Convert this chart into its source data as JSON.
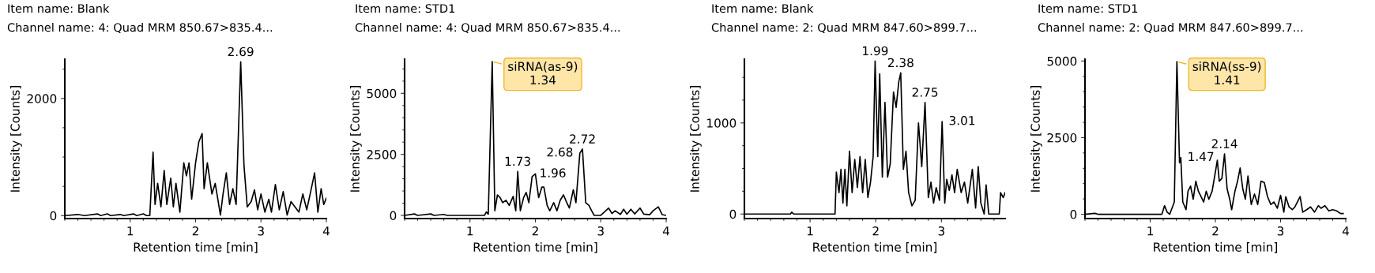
{
  "chart_data": [
    {
      "type": "line",
      "title": "Item name: Blank",
      "subtitle": "Channel name: 4: Quad MRM 850.67>835.4...",
      "xlabel": "Retention time [min]",
      "ylabel": "Intensity [Counts]",
      "xlim": [
        0,
        4
      ],
      "xticks": [
        1,
        2,
        3,
        4
      ],
      "ylim": [
        -50,
        2670
      ],
      "yticks": [
        0,
        2000
      ],
      "series": [
        {
          "color": "#000000",
          "x": [
            0,
            0.2,
            0.3,
            0.5,
            0.55,
            0.65,
            0.7,
            0.85,
            0.9,
            1.05,
            1.1,
            1.2,
            1.25,
            1.3,
            1.35,
            1.38,
            1.42,
            1.47,
            1.52,
            1.56,
            1.62,
            1.66,
            1.7,
            1.76,
            1.82,
            1.86,
            1.9,
            1.94,
            2.0,
            2.05,
            2.1,
            2.13,
            2.18,
            2.25,
            2.3,
            2.38,
            2.42,
            2.47,
            2.52,
            2.57,
            2.62,
            2.69,
            2.74,
            2.79,
            2.85,
            2.9,
            2.95,
            3.0,
            3.06,
            3.12,
            3.16,
            3.22,
            3.28,
            3.34,
            3.4,
            3.46,
            3.52,
            3.58,
            3.64,
            3.7,
            3.76,
            3.82,
            3.87,
            3.92,
            3.96,
            4.0
          ],
          "values": [
            0,
            20,
            0,
            30,
            0,
            30,
            0,
            20,
            0,
            30,
            0,
            30,
            0,
            0,
            1085,
            190,
            550,
            150,
            770,
            190,
            640,
            150,
            550,
            60,
            900,
            680,
            900,
            280,
            900,
            1260,
            1400,
            460,
            900,
            370,
            550,
            10,
            370,
            730,
            190,
            460,
            190,
            2625,
            860,
            150,
            240,
            440,
            100,
            370,
            60,
            280,
            60,
            530,
            100,
            410,
            10,
            240,
            150,
            60,
            370,
            100,
            410,
            730,
            60,
            460,
            190,
            300
          ]
        }
      ],
      "annotations": [
        {
          "text": "2.69",
          "x": 2.69,
          "y": 2625
        }
      ]
    },
    {
      "type": "line",
      "title": "Item name: STD1",
      "subtitle": "Channel name: 4: Quad MRM 850.67>835.4...",
      "xlabel": "Retention time [min]",
      "ylabel": "Intensity [Counts]",
      "xlim": [
        0,
        4
      ],
      "xticks": [
        1,
        2,
        3,
        4
      ],
      "ylim": [
        -130,
        6400
      ],
      "yticks": [
        0,
        2500,
        5000
      ],
      "series": [
        {
          "color": "#000000",
          "x": [
            0,
            0.15,
            0.2,
            0.4,
            0.45,
            0.6,
            0.65,
            1.2,
            1.22,
            1.25,
            1.28,
            1.34,
            1.38,
            1.42,
            1.46,
            1.5,
            1.55,
            1.6,
            1.66,
            1.7,
            1.73,
            1.77,
            1.82,
            1.86,
            1.9,
            1.95,
            2.0,
            2.05,
            2.1,
            2.13,
            2.18,
            2.22,
            2.28,
            2.33,
            2.38,
            2.43,
            2.48,
            2.52,
            2.58,
            2.62,
            2.68,
            2.72,
            2.77,
            2.82,
            2.86,
            2.9,
            3.0,
            3.12,
            3.17,
            3.22,
            3.3,
            3.35,
            3.4,
            3.46,
            3.52,
            3.6,
            3.66,
            3.75,
            3.8,
            3.88,
            3.94,
            4.0
          ],
          "values": [
            0,
            60,
            0,
            60,
            0,
            40,
            0,
            0,
            0,
            140,
            50,
            6300,
            190,
            840,
            730,
            520,
            620,
            410,
            780,
            190,
            1800,
            190,
            730,
            940,
            520,
            1590,
            1700,
            730,
            1160,
            1160,
            410,
            190,
            520,
            190,
            620,
            840,
            520,
            300,
            1050,
            520,
            2550,
            2715,
            520,
            410,
            190,
            0,
            0,
            300,
            80,
            190,
            40,
            250,
            50,
            250,
            60,
            300,
            50,
            30,
            190,
            350,
            30,
            0
          ]
        }
      ],
      "annotations": [
        {
          "text": "siRNA(as-9)\n1.34",
          "x": 1.34,
          "y": 6300
        },
        {
          "text": "1.73",
          "x": 1.73,
          "y": 1800
        },
        {
          "text": "1.96",
          "x": 1.96,
          "y": 1700
        },
        {
          "text": "2.68",
          "x": 2.68,
          "y": 2550
        },
        {
          "text": "2.72",
          "x": 2.72,
          "y": 2715
        }
      ]
    },
    {
      "type": "line",
      "title": "Item name: Blank",
      "subtitle": "Channel name: 2: Quad MRM 847.60>899.7...",
      "xlabel": "Retention time [min]",
      "ylabel": "Intensity [Counts]",
      "xlim": [
        0,
        3.97
      ],
      "xticks": [
        1,
        2,
        3
      ],
      "ylim": [
        -50,
        1700
      ],
      "yticks": [
        0,
        1000
      ],
      "series": [
        {
          "color": "#000000",
          "x": [
            0,
            0.7,
            0.72,
            0.75,
            1.38,
            1.4,
            1.44,
            1.47,
            1.5,
            1.53,
            1.56,
            1.6,
            1.64,
            1.68,
            1.72,
            1.76,
            1.8,
            1.84,
            1.88,
            1.92,
            1.96,
            1.99,
            2.03,
            2.06,
            2.1,
            2.14,
            2.18,
            2.22,
            2.27,
            2.31,
            2.35,
            2.38,
            2.42,
            2.46,
            2.5,
            2.55,
            2.6,
            2.65,
            2.7,
            2.75,
            2.8,
            2.84,
            2.88,
            2.92,
            2.97,
            3.01,
            3.05,
            3.08,
            3.12,
            3.16,
            3.2,
            3.24,
            3.3,
            3.35,
            3.4,
            3.47,
            3.52,
            3.56,
            3.6,
            3.65,
            3.68,
            3.72,
            3.88,
            3.9,
            3.94,
            3.97
          ],
          "values": [
            0,
            0,
            20,
            0,
            0,
            460,
            235,
            490,
            120,
            490,
            90,
            690,
            235,
            600,
            290,
            630,
            235,
            600,
            180,
            350,
            630,
            1680,
            630,
            1540,
            405,
            1225,
            405,
            550,
            1340,
            1170,
            1450,
            1550,
            490,
            690,
            235,
            90,
            150,
            1000,
            520,
            1225,
            180,
            350,
            120,
            290,
            150,
            1015,
            120,
            380,
            260,
            430,
            235,
            490,
            235,
            350,
            120,
            490,
            65,
            520,
            120,
            0,
            320,
            0,
            0,
            235,
            180,
            235
          ]
        }
      ],
      "annotations": [
        {
          "text": "1.99",
          "x": 1.99,
          "y": 1680
        },
        {
          "text": "2.38",
          "x": 2.38,
          "y": 1550
        },
        {
          "text": "2.75",
          "x": 2.75,
          "y": 1225
        },
        {
          "text": "3.01",
          "x": 3.01,
          "y": 1015
        }
      ]
    },
    {
      "type": "line",
      "title": "Item name: STD1",
      "subtitle": "Channel name: 2: Quad MRM 847.60>899.7...",
      "xlabel": "Retention time [min]",
      "ylabel": "Intensity [Counts]",
      "xlim": [
        0,
        4
      ],
      "xticks": [
        1,
        2,
        3,
        4
      ],
      "ylim": [
        -140,
        5060
      ],
      "yticks": [
        0,
        2500,
        5000
      ],
      "series": [
        {
          "color": "#000000",
          "x": [
            0,
            0.15,
            0.2,
            1.18,
            1.22,
            1.26,
            1.3,
            1.37,
            1.41,
            1.45,
            1.47,
            1.5,
            1.55,
            1.58,
            1.62,
            1.66,
            1.7,
            1.74,
            1.78,
            1.82,
            1.86,
            1.9,
            1.95,
            1.99,
            2.03,
            2.06,
            2.1,
            2.14,
            2.18,
            2.22,
            2.25,
            2.3,
            2.34,
            2.38,
            2.42,
            2.46,
            2.5,
            2.55,
            2.6,
            2.65,
            2.7,
            2.75,
            2.8,
            2.85,
            2.9,
            2.95,
            3.0,
            3.05,
            3.08,
            3.13,
            3.18,
            3.22,
            3.3,
            3.34,
            3.4,
            3.46,
            3.52,
            3.58,
            3.62,
            3.68,
            3.74,
            3.8,
            3.86,
            3.92,
            3.96
          ],
          "values": [
            0,
            30,
            0,
            0,
            280,
            70,
            0,
            400,
            4980,
            1680,
            1850,
            400,
            150,
            750,
            920,
            490,
            1080,
            750,
            575,
            400,
            750,
            490,
            750,
            1250,
            1760,
            1080,
            1170,
            1970,
            830,
            490,
            150,
            750,
            1080,
            1510,
            830,
            490,
            1250,
            320,
            660,
            320,
            1080,
            1040,
            575,
            320,
            400,
            195,
            620,
            70,
            575,
            240,
            150,
            240,
            575,
            70,
            150,
            240,
            70,
            280,
            195,
            280,
            110,
            150,
            110,
            25,
            25
          ]
        }
      ],
      "annotations": [
        {
          "text": "siRNA(ss-9)\n1.41",
          "x": 1.41,
          "y": 4980
        },
        {
          "text": "1.47",
          "x": 1.47,
          "y": 1850
        },
        {
          "text": "2.14",
          "x": 2.14,
          "y": 1970
        }
      ]
    }
  ]
}
